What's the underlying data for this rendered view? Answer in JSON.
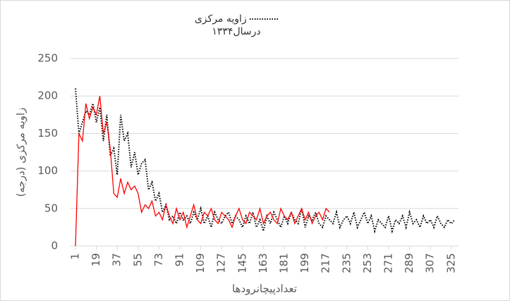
{
  "chart_data": {
    "type": "line",
    "x_label": "تعدادپیچانرودها",
    "y_label": "زاویه مرکزی (درجه)",
    "x": [
      1,
      4,
      7,
      10,
      13,
      16,
      19,
      22,
      25,
      28,
      31,
      34,
      37,
      40,
      43,
      46,
      49,
      52,
      55,
      58,
      61,
      64,
      67,
      70,
      73,
      76,
      79,
      82,
      85,
      88,
      91,
      94,
      97,
      100,
      103,
      106,
      109,
      112,
      115,
      118,
      121,
      124,
      127,
      130,
      133,
      136,
      139,
      142,
      145,
      148,
      151,
      154,
      157,
      160,
      163,
      166,
      169,
      172,
      175,
      178,
      181,
      184,
      187,
      190,
      193,
      196,
      199,
      202,
      205,
      208,
      211,
      214,
      217,
      220,
      223,
      226,
      229,
      232,
      235,
      238,
      241,
      244,
      247,
      250,
      253,
      256,
      259,
      262,
      265,
      268,
      271,
      274,
      277,
      280,
      283,
      286,
      289,
      292,
      295,
      298,
      301,
      304,
      307,
      310,
      313,
      316,
      319,
      322,
      325,
      328
    ],
    "series": [
      {
        "name": "زاویه مرکزی درسال۱۳۳۴",
        "color": "#000000",
        "dash": "dotted",
        "values": [
          210,
          150,
          165,
          180,
          175,
          190,
          165,
          185,
          140,
          175,
          120,
          130,
          95,
          175,
          140,
          150,
          105,
          125,
          95,
          110,
          115,
          75,
          85,
          60,
          70,
          45,
          55,
          35,
          40,
          30,
          45,
          35,
          40,
          30,
          45,
          35,
          50,
          30,
          40,
          25,
          45,
          35,
          30,
          40,
          45,
          30,
          40,
          35,
          25,
          40,
          30,
          45,
          25,
          35,
          20,
          40,
          30,
          45,
          35,
          25,
          40,
          30,
          45,
          35,
          30,
          50,
          25,
          40,
          35,
          45,
          30,
          25,
          40,
          35,
          30,
          45,
          25,
          35,
          40,
          30,
          45,
          25,
          35,
          45,
          30,
          40,
          20,
          35,
          30,
          25,
          40,
          20,
          35,
          30,
          40,
          25,
          45,
          30,
          35,
          25,
          40,
          30,
          35,
          25,
          40,
          30,
          25,
          35,
          30,
          35
        ]
      },
      {
        "color": "#ff0000",
        "dash": "solid",
        "values": [
          0,
          150,
          140,
          190,
          170,
          185,
          175,
          200,
          150,
          165,
          130,
          70,
          65,
          90,
          70,
          85,
          75,
          80,
          70,
          45,
          55,
          50,
          60,
          40,
          45,
          35,
          55,
          40,
          30,
          50,
          35,
          45,
          25,
          40,
          55,
          35,
          30,
          45,
          40,
          50,
          35,
          30,
          45,
          40,
          35,
          25,
          40,
          50,
          35,
          30,
          45,
          40,
          35,
          50,
          30,
          40,
          45,
          35,
          30,
          50,
          40,
          35,
          45,
          30,
          40,
          50,
          35,
          45,
          30,
          40,
          45,
          35,
          50,
          45,
          null,
          null,
          null,
          null,
          null,
          null,
          null,
          null,
          null,
          null,
          null,
          null,
          null,
          null,
          null,
          null,
          null,
          null,
          null,
          null,
          null,
          null,
          null,
          null,
          null,
          null,
          null,
          null,
          null,
          null,
          null,
          null,
          null,
          null,
          null,
          null
        ]
      }
    ],
    "xlim": [
      1,
      330
    ],
    "xticks": [
      1,
      19,
      37,
      55,
      73,
      91,
      109,
      127,
      145,
      163,
      181,
      199,
      217,
      235,
      253,
      271,
      289,
      307,
      325
    ],
    "ylim": [
      0,
      250
    ],
    "yticks": [
      0,
      50,
      100,
      150,
      200,
      250
    ],
    "grid": true
  }
}
